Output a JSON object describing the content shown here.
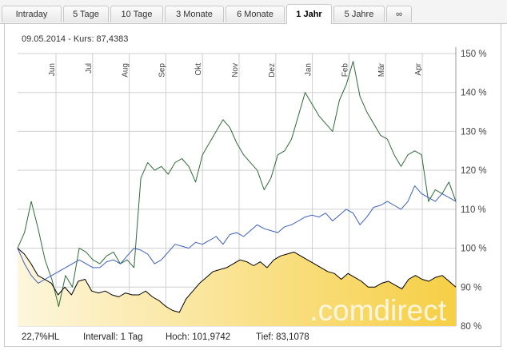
{
  "tabs": [
    {
      "label": "Intraday"
    },
    {
      "label": "5 Tage"
    },
    {
      "label": "10 Tage"
    },
    {
      "label": "3 Monate"
    },
    {
      "label": "6 Monate"
    },
    {
      "label": "1 Jahr"
    },
    {
      "label": "5 Jahre"
    },
    {
      "label": "∞"
    }
  ],
  "active_tab": "1 Jahr",
  "quote": {
    "text": "09.05.2014  -  Kurs: 87,4383"
  },
  "stats": {
    "change": "22,7%HL",
    "interval": "Intervall: 1 Tag",
    "high": "Hoch: 101,9742",
    "low": "Tief: 83,1078"
  },
  "watermark": ".comdirect",
  "colors": {
    "main_line": "#000000",
    "green_line": "#2e6b3a",
    "blue_line": "#3b5fc0",
    "fill_light": "#fdf6dc",
    "fill_dark": "#f6cf45",
    "grid": "#c8c8c8"
  },
  "chart_data": {
    "type": "line",
    "months": [
      "Jun",
      "Jul",
      "Aug",
      "Sep",
      "Okt",
      "Nov",
      "Dez",
      "Jan",
      "Feb",
      "Mär",
      "Apr"
    ],
    "ylim": [
      80,
      150
    ],
    "yticks": [
      "150 %",
      "140 %",
      "130 %",
      "120 %",
      "110 %",
      "100 %",
      "90 %",
      "80 %"
    ],
    "series": [
      {
        "values": [
          100,
          98.5,
          96,
          93,
          92,
          91,
          88,
          90,
          88,
          91.5,
          92,
          89,
          88.5,
          89,
          88,
          87.5,
          88.5,
          88,
          88,
          89,
          87.5,
          86.5,
          85,
          84,
          83.5,
          87,
          89,
          91,
          92.5,
          94,
          94.5,
          95,
          96,
          97,
          96.5,
          95.5,
          96.5,
          95,
          97,
          98,
          98.5,
          99,
          98,
          97,
          96,
          95,
          94,
          93.5,
          92,
          93.5,
          92.5,
          91.5,
          90,
          90,
          91,
          91.5,
          90.5,
          89.5,
          92,
          93,
          92,
          91.5,
          92.5,
          93,
          91.5,
          90
        ]
      },
      {
        "values": [
          100,
          104,
          112,
          105,
          97,
          92,
          85,
          93,
          90,
          100,
          99,
          97,
          96,
          98,
          99,
          96,
          97,
          95,
          118,
          122,
          120,
          121,
          119,
          122,
          123,
          121,
          117,
          124,
          127,
          130,
          133,
          131,
          127,
          124,
          122,
          120,
          115,
          118,
          124,
          125,
          128,
          134,
          140,
          137,
          134,
          132,
          130,
          138,
          142,
          148,
          139,
          135,
          132,
          129,
          128,
          124,
          121,
          124,
          125,
          124,
          112,
          115,
          114,
          117,
          112
        ]
      },
      {
        "values": [
          100,
          96,
          93,
          91,
          92,
          93,
          94,
          95,
          96,
          97,
          96,
          95,
          95,
          96.5,
          97,
          96,
          98,
          100,
          99.5,
          98.5,
          96,
          97,
          99,
          101,
          100.5,
          100,
          101.5,
          101,
          102,
          103,
          101,
          103.5,
          104,
          103,
          104.5,
          106,
          105,
          104.5,
          104,
          105.5,
          106,
          107,
          108,
          108.5,
          108,
          109,
          107,
          108.5,
          110,
          109,
          106,
          108,
          110.5,
          111,
          112,
          111,
          110,
          112,
          116,
          114,
          113,
          112,
          114,
          113,
          112
        ]
      }
    ]
  }
}
